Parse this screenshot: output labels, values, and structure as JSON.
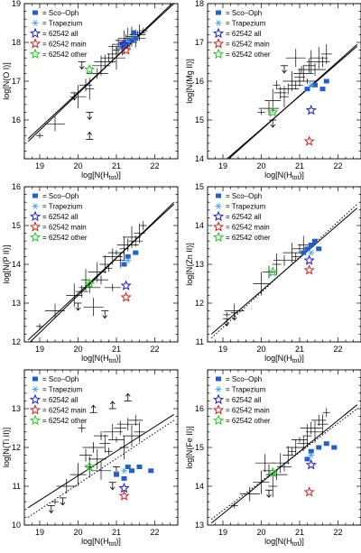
{
  "legend": [
    {
      "label": "= Sco–Oph",
      "marker": "square",
      "color": "#1f5fd0"
    },
    {
      "label": "= Trapezium",
      "marker": "asterisk",
      "color": "#44a8ff"
    },
    {
      "label": "= 62542 all",
      "marker": "star",
      "color": "#1a1ad6"
    },
    {
      "label": "= 62542 main",
      "marker": "star",
      "color": "#d42020"
    },
    {
      "label": "= 62542 other",
      "marker": "star",
      "color": "#22cc22"
    }
  ],
  "colors": {
    "data": "#000000",
    "fit": "#000000"
  },
  "chart_data": [
    {
      "type": "scatter",
      "xlabel": "log[N(H_tot)]",
      "ylabel": "log[N(O I)]",
      "xlim": [
        18.6,
        22.6
      ],
      "ylim": [
        15.0,
        19.0
      ],
      "xticks": [
        19,
        20,
        21,
        22
      ],
      "yticks": [
        16,
        17,
        18,
        19
      ],
      "fit_lines": [
        [
          [
            18.7,
            15.45
          ],
          [
            22.5,
            19.05
          ]
        ],
        [
          [
            18.7,
            15.52
          ],
          [
            22.5,
            19.0
          ]
        ]
      ],
      "points": [
        [
          19.0,
          15.6
        ],
        [
          19.4,
          15.9
        ],
        [
          20.0,
          16.6
        ],
        [
          20.2,
          16.9
        ],
        [
          20.3,
          16.8
        ],
        [
          20.5,
          17.2
        ],
        [
          20.6,
          17.4
        ],
        [
          20.8,
          17.6
        ],
        [
          20.9,
          17.7
        ],
        [
          21.0,
          17.8
        ],
        [
          21.05,
          17.9
        ],
        [
          21.1,
          17.95
        ],
        [
          21.15,
          17.85
        ],
        [
          21.2,
          18.0
        ],
        [
          21.25,
          18.05
        ],
        [
          21.3,
          18.1
        ],
        [
          21.35,
          18.0
        ],
        [
          21.4,
          18.15
        ],
        [
          21.45,
          18.2
        ],
        [
          21.5,
          18.1
        ],
        [
          21.55,
          18.2
        ],
        [
          21.6,
          18.25
        ],
        [
          21.7,
          18.3
        ],
        [
          20.7,
          17.5
        ],
        [
          21.0,
          17.6
        ]
      ],
      "upper_limits": [
        [
          20.1,
          17.5
        ],
        [
          19.9,
          16.7
        ],
        [
          20.3,
          16.2
        ]
      ],
      "lower_limits": [
        [
          20.3,
          15.5
        ]
      ],
      "sco_oph": [
        [
          21.2,
          17.95
        ],
        [
          21.35,
          18.05
        ],
        [
          21.5,
          18.1
        ],
        [
          21.45,
          18.25
        ]
      ],
      "trapezium": [
        [
          21.1,
          17.85
        ],
        [
          21.3,
          18.0
        ]
      ],
      "star_all": [
        [
          21.2,
          17.95
        ]
      ],
      "star_main": [
        [
          21.25,
          17.8
        ]
      ],
      "star_other": [
        [
          20.3,
          17.3
        ]
      ]
    },
    {
      "type": "scatter",
      "xlabel": "log[N(H_tot)]",
      "ylabel": "log[N(Mg II)]",
      "xlim": [
        18.6,
        22.6
      ],
      "ylim": [
        14.0,
        18.0
      ],
      "xticks": [
        19,
        20,
        21,
        22
      ],
      "yticks": [
        14,
        15,
        16,
        17,
        18
      ],
      "fit_lines": [
        [
          [
            18.7,
            13.6
          ],
          [
            22.5,
            16.95
          ]
        ],
        [
          [
            18.7,
            13.65
          ],
          [
            22.5,
            16.9
          ]
        ]
      ],
      "points": [
        [
          20.0,
          15.2
        ],
        [
          20.2,
          15.3
        ],
        [
          20.3,
          15.5
        ],
        [
          20.5,
          15.7
        ],
        [
          20.6,
          15.6
        ],
        [
          20.7,
          15.8
        ],
        [
          20.8,
          16.0
        ],
        [
          20.9,
          15.9
        ],
        [
          21.0,
          16.1
        ],
        [
          21.05,
          16.3
        ],
        [
          21.1,
          16.2
        ],
        [
          21.2,
          16.0
        ],
        [
          21.25,
          16.4
        ],
        [
          21.3,
          16.5
        ],
        [
          21.4,
          16.3
        ],
        [
          21.5,
          16.6
        ],
        [
          21.6,
          16.5
        ],
        [
          21.7,
          16.7
        ],
        [
          20.4,
          15.9
        ],
        [
          20.9,
          16.6
        ]
      ],
      "upper_limits": [
        [
          20.6,
          16.4
        ],
        [
          20.3,
          15.0
        ]
      ],
      "lower_limits": [],
      "sco_oph": [
        [
          21.2,
          15.8
        ],
        [
          21.4,
          15.9
        ],
        [
          21.6,
          15.8
        ],
        [
          21.7,
          16.0
        ]
      ],
      "trapezium": [
        [
          21.3,
          15.9
        ]
      ],
      "star_all": [
        [
          21.3,
          15.25
        ]
      ],
      "star_main": [
        [
          21.25,
          14.45
        ]
      ],
      "star_other": [
        [
          20.3,
          15.2
        ]
      ]
    },
    {
      "type": "scatter",
      "xlabel": "log[N(H_tot)]",
      "ylabel": "log[N(P II)]",
      "xlim": [
        18.6,
        22.6
      ],
      "ylim": [
        12.0,
        16.0
      ],
      "xticks": [
        19,
        20,
        21,
        22
      ],
      "yticks": [
        12,
        13,
        14,
        15,
        16
      ],
      "fit_lines": [
        [
          [
            18.7,
            11.95
          ],
          [
            22.5,
            15.6
          ]
        ],
        [
          [
            18.7,
            12.05
          ],
          [
            22.5,
            15.55
          ]
        ]
      ],
      "points": [
        [
          19.0,
          12.4
        ],
        [
          19.4,
          12.8
        ],
        [
          19.9,
          13.2
        ],
        [
          20.1,
          13.3
        ],
        [
          20.2,
          13.6
        ],
        [
          20.3,
          13.4
        ],
        [
          20.5,
          13.8
        ],
        [
          20.6,
          13.6
        ],
        [
          20.7,
          14.0
        ],
        [
          20.8,
          13.9
        ],
        [
          20.9,
          14.2
        ],
        [
          21.0,
          14.3
        ],
        [
          21.1,
          14.1
        ],
        [
          21.2,
          14.4
        ],
        [
          21.3,
          14.5
        ],
        [
          21.4,
          14.7
        ],
        [
          21.5,
          14.6
        ],
        [
          21.6,
          14.8
        ],
        [
          21.7,
          15.0
        ],
        [
          20.4,
          12.9
        ],
        [
          20.9,
          13.4
        ]
      ],
      "upper_limits": [
        [
          20.0,
          13.0
        ],
        [
          20.7,
          12.8
        ]
      ],
      "lower_limits": [],
      "sco_oph": [
        [
          21.2,
          14.0
        ],
        [
          21.3,
          14.2
        ],
        [
          21.5,
          14.3
        ]
      ],
      "trapezium": [
        [
          21.3,
          14.1
        ]
      ],
      "star_all": [
        [
          21.25,
          13.45
        ]
      ],
      "star_main": [
        [
          21.25,
          13.15
        ]
      ],
      "star_other": [
        [
          20.3,
          13.5
        ]
      ]
    },
    {
      "type": "scatter",
      "xlabel": "log[N(H_tot)]",
      "ylabel": "log[N(Zn II)]",
      "xlim": [
        18.6,
        22.6
      ],
      "ylim": [
        11.0,
        15.0
      ],
      "xticks": [
        19,
        20,
        21,
        22
      ],
      "yticks": [
        11,
        12,
        13,
        14,
        15
      ],
      "fit_lines": [
        [
          [
            18.7,
            11.2
          ],
          [
            22.5,
            14.45
          ]
        ],
        [
          [
            18.7,
            11.1
          ],
          [
            22.5,
            14.55
          ]
        ]
      ],
      "points": [
        [
          19.1,
          11.7
        ],
        [
          19.3,
          11.8
        ],
        [
          20.0,
          12.5
        ],
        [
          20.2,
          12.8
        ],
        [
          20.4,
          13.0
        ],
        [
          20.6,
          13.1
        ],
        [
          20.8,
          13.3
        ],
        [
          21.0,
          13.4
        ],
        [
          21.1,
          13.5
        ],
        [
          20.9,
          13.2
        ]
      ],
      "upper_limits": [
        [
          19.1,
          11.6
        ],
        [
          19.3,
          11.75
        ]
      ],
      "lower_limits": [],
      "sco_oph": [
        [
          21.2,
          13.4
        ],
        [
          21.3,
          13.5
        ],
        [
          21.4,
          13.6
        ],
        [
          21.1,
          13.3
        ],
        [
          21.5,
          13.4
        ]
      ],
      "trapezium": [
        [
          21.3,
          13.3
        ]
      ],
      "star_all": [
        [
          21.25,
          13.1
        ]
      ],
      "star_main": [
        [
          21.25,
          12.85
        ]
      ],
      "star_other": [
        [
          20.3,
          12.8
        ]
      ]
    },
    {
      "type": "scatter",
      "xlabel": "log[N(H_tot)]",
      "ylabel": "log[N(Ti II)]",
      "xlim": [
        18.6,
        22.6
      ],
      "ylim": [
        10.0,
        14.0
      ],
      "xticks": [
        19,
        20,
        21,
        22
      ],
      "yticks": [
        10,
        11,
        12,
        13
      ],
      "fit_lines": [
        [
          [
            18.7,
            10.45
          ],
          [
            22.5,
            12.85
          ]
        ],
        [
          [
            18.7,
            10.2
          ],
          [
            22.5,
            12.7
          ]
        ]
      ],
      "points": [
        [
          19.4,
          10.6
        ],
        [
          19.7,
          11.0
        ],
        [
          20.0,
          11.3
        ],
        [
          20.2,
          11.8
        ],
        [
          20.3,
          11.5
        ],
        [
          20.4,
          12.0
        ],
        [
          20.5,
          11.7
        ],
        [
          20.6,
          12.3
        ],
        [
          20.7,
          12.1
        ],
        [
          20.8,
          11.9
        ],
        [
          20.9,
          12.4
        ],
        [
          21.0,
          12.2
        ],
        [
          21.1,
          12.5
        ],
        [
          21.2,
          12.0
        ],
        [
          21.3,
          12.6
        ],
        [
          21.4,
          12.3
        ],
        [
          21.5,
          12.7
        ],
        [
          21.6,
          12.4
        ],
        [
          20.1,
          12.5
        ],
        [
          20.6,
          11.4
        ]
      ],
      "upper_limits": [
        [
          19.3,
          10.5
        ],
        [
          19.6,
          10.7
        ],
        [
          20.9,
          11.1
        ],
        [
          21.0,
          11.5
        ]
      ],
      "lower_limits": [
        [
          20.9,
          13.0
        ],
        [
          21.3,
          13.2
        ],
        [
          20.4,
          12.9
        ]
      ],
      "sco_oph": [
        [
          21.0,
          11.3
        ],
        [
          21.3,
          11.5
        ],
        [
          21.4,
          11.4
        ],
        [
          21.6,
          11.5
        ],
        [
          21.9,
          11.4
        ],
        [
          21.2,
          11.2
        ]
      ],
      "trapezium": [
        [
          21.2,
          11.4
        ]
      ],
      "star_all": [
        [
          21.2,
          10.95
        ]
      ],
      "star_main": [
        [
          21.2,
          10.75
        ]
      ],
      "star_other": [
        [
          20.3,
          11.5
        ]
      ]
    },
    {
      "type": "scatter",
      "xlabel": "log[N(H_tot)]",
      "ylabel": "log[N(Fe II)]",
      "xlim": [
        18.6,
        22.6
      ],
      "ylim": [
        13.0,
        17.0
      ],
      "xticks": [
        19,
        20,
        21,
        22
      ],
      "yticks": [
        13,
        14,
        15,
        16
      ],
      "fit_lines": [
        [
          [
            18.7,
            13.05
          ],
          [
            22.5,
            16.1
          ]
        ],
        [
          [
            18.7,
            13.15
          ],
          [
            22.5,
            16.0
          ]
        ]
      ],
      "points": [
        [
          19.3,
          13.5
        ],
        [
          19.7,
          13.8
        ],
        [
          20.0,
          14.1
        ],
        [
          20.2,
          14.4
        ],
        [
          20.3,
          14.0
        ],
        [
          20.4,
          14.3
        ],
        [
          20.5,
          14.6
        ],
        [
          20.6,
          14.5
        ],
        [
          20.7,
          14.8
        ],
        [
          20.8,
          14.9
        ],
        [
          20.9,
          15.0
        ],
        [
          21.0,
          15.2
        ],
        [
          21.1,
          15.1
        ],
        [
          21.2,
          15.3
        ],
        [
          21.3,
          15.5
        ],
        [
          21.4,
          15.4
        ],
        [
          21.5,
          15.7
        ],
        [
          21.6,
          15.6
        ],
        [
          21.7,
          15.9
        ],
        [
          20.1,
          14.6
        ]
      ],
      "upper_limits": [
        [
          20.2,
          13.9
        ]
      ],
      "lower_limits": [],
      "sco_oph": [
        [
          21.2,
          14.7
        ],
        [
          21.3,
          14.9
        ],
        [
          21.5,
          15.0
        ],
        [
          21.7,
          15.1
        ],
        [
          21.9,
          15.0
        ]
      ],
      "trapezium": [
        [
          21.3,
          14.8
        ]
      ],
      "star_all": [
        [
          21.3,
          14.55
        ]
      ],
      "star_main": [
        [
          21.25,
          13.85
        ]
      ],
      "star_other": [
        [
          20.3,
          14.35
        ]
      ]
    }
  ]
}
